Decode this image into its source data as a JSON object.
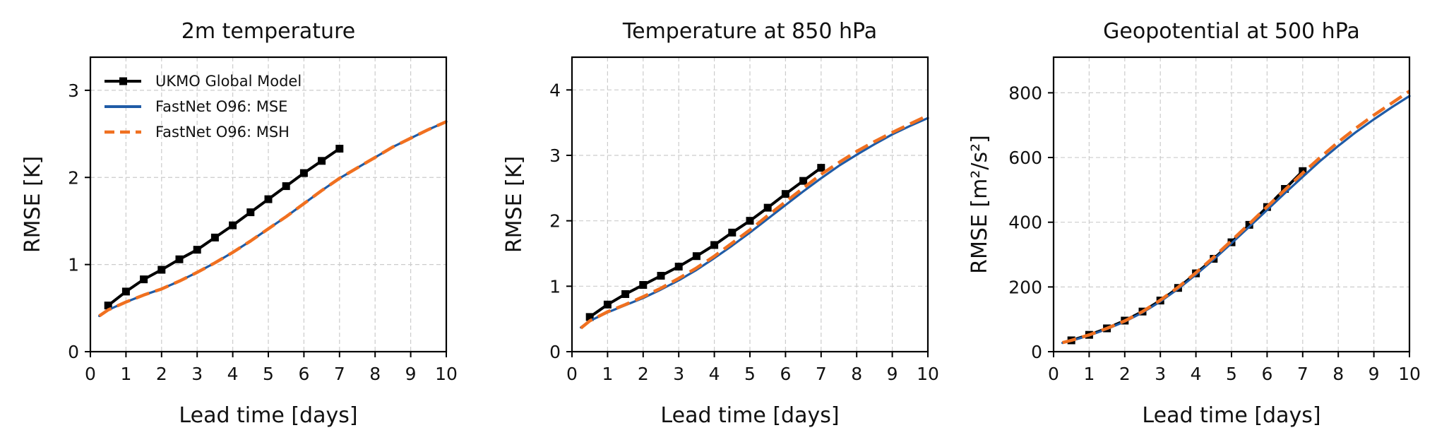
{
  "chart_data": [
    {
      "type": "line",
      "title": "2m temperature",
      "xlabel": "Lead time [days]",
      "ylabel": "RMSE [K]",
      "xlim": [
        0,
        10
      ],
      "ylim": [
        0,
        3.38
      ],
      "xticks": [
        0,
        1,
        2,
        3,
        4,
        5,
        6,
        7,
        8,
        9,
        10
      ],
      "yticks": [
        0,
        1,
        2,
        3
      ],
      "grid": true,
      "legend": "top-left",
      "series": [
        {
          "name": "UKMO Global Model",
          "color": "#000000",
          "style": "solid-square-markers",
          "x": [
            0.5,
            1,
            1.5,
            2,
            2.5,
            3,
            3.5,
            4,
            4.5,
            5,
            5.5,
            6,
            6.5,
            7
          ],
          "y": [
            0.53,
            0.69,
            0.83,
            0.94,
            1.06,
            1.17,
            1.31,
            1.45,
            1.6,
            1.75,
            1.9,
            2.05,
            2.19,
            2.33
          ]
        },
        {
          "name": "FastNet O96: MSE",
          "color": "#1f5ba6",
          "style": "solid",
          "x": [
            0.25,
            0.5,
            1,
            1.5,
            2,
            2.5,
            3,
            3.5,
            4,
            4.5,
            5,
            5.5,
            6,
            6.5,
            7,
            7.5,
            8,
            8.5,
            9,
            9.5,
            10
          ],
          "y": [
            0.41,
            0.48,
            0.57,
            0.65,
            0.72,
            0.81,
            0.91,
            1.02,
            1.14,
            1.27,
            1.41,
            1.55,
            1.7,
            1.85,
            1.99,
            2.11,
            2.23,
            2.35,
            2.45,
            2.55,
            2.64
          ]
        },
        {
          "name": "FastNet O96: MSH",
          "color": "#f07020",
          "style": "dashed",
          "x": [
            0.25,
            0.5,
            1,
            1.5,
            2,
            2.5,
            3,
            3.5,
            4,
            4.5,
            5,
            5.5,
            6,
            6.5,
            7,
            7.5,
            8,
            8.5,
            9,
            9.5,
            10
          ],
          "y": [
            0.41,
            0.48,
            0.57,
            0.65,
            0.72,
            0.81,
            0.91,
            1.02,
            1.14,
            1.27,
            1.41,
            1.55,
            1.7,
            1.85,
            1.99,
            2.11,
            2.23,
            2.35,
            2.45,
            2.55,
            2.64
          ]
        }
      ]
    },
    {
      "type": "line",
      "title": "Temperature at 850 hPa",
      "xlabel": "Lead time [days]",
      "ylabel": "RMSE [K]",
      "xlim": [
        0,
        10
      ],
      "ylim": [
        0,
        4.5
      ],
      "xticks": [
        0,
        1,
        2,
        3,
        4,
        5,
        6,
        7,
        8,
        9,
        10
      ],
      "yticks": [
        0,
        1,
        2,
        3,
        4
      ],
      "grid": true,
      "series": [
        {
          "name": "UKMO Global Model",
          "color": "#000000",
          "style": "solid-square-markers",
          "x": [
            0.5,
            1,
            1.5,
            2,
            2.5,
            3,
            3.5,
            4,
            4.5,
            5,
            5.5,
            6,
            6.5,
            7
          ],
          "y": [
            0.53,
            0.72,
            0.88,
            1.02,
            1.16,
            1.3,
            1.46,
            1.63,
            1.82,
            2.0,
            2.2,
            2.41,
            2.61,
            2.81
          ]
        },
        {
          "name": "FastNet O96: MSE",
          "color": "#1f5ba6",
          "style": "solid",
          "x": [
            0.25,
            0.5,
            1,
            1.5,
            2,
            2.5,
            3,
            3.5,
            4,
            4.5,
            5,
            5.5,
            6,
            6.5,
            7,
            7.5,
            8,
            8.5,
            9,
            9.5,
            10
          ],
          "y": [
            0.37,
            0.47,
            0.6,
            0.71,
            0.82,
            0.95,
            1.09,
            1.25,
            1.43,
            1.62,
            1.82,
            2.03,
            2.24,
            2.45,
            2.65,
            2.84,
            3.01,
            3.17,
            3.32,
            3.45,
            3.57
          ]
        },
        {
          "name": "FastNet O96: MSH",
          "color": "#f07020",
          "style": "dashed",
          "x": [
            0.25,
            0.5,
            1,
            1.5,
            2,
            2.5,
            3,
            3.5,
            4,
            4.5,
            5,
            5.5,
            6,
            6.5,
            7,
            7.5,
            8,
            8.5,
            9,
            9.5,
            10
          ],
          "y": [
            0.36,
            0.47,
            0.61,
            0.72,
            0.84,
            0.97,
            1.12,
            1.28,
            1.46,
            1.66,
            1.86,
            2.08,
            2.29,
            2.5,
            2.71,
            2.89,
            3.06,
            3.21,
            3.35,
            3.48,
            3.61
          ]
        }
      ]
    },
    {
      "type": "line",
      "title": "Geopotential at 500 hPa",
      "xlabel": "Lead time [days]",
      "ylabel": "RMSE [m²/s²]",
      "xlim": [
        0,
        10
      ],
      "ylim": [
        0,
        910
      ],
      "xticks": [
        0,
        1,
        2,
        3,
        4,
        5,
        6,
        7,
        8,
        9,
        10
      ],
      "yticks": [
        0,
        200,
        400,
        600,
        800
      ],
      "grid": true,
      "series": [
        {
          "name": "UKMO Global Model",
          "color": "#000000",
          "style": "solid-square-markers",
          "x": [
            0.5,
            1,
            1.5,
            2,
            2.5,
            3,
            3.5,
            4,
            4.5,
            5,
            5.5,
            6,
            6.5,
            7
          ],
          "y": [
            35,
            52,
            72,
            96,
            124,
            158,
            197,
            242,
            287,
            338,
            392,
            447,
            503,
            558
          ]
        },
        {
          "name": "FastNet O96: MSE",
          "color": "#1f5ba6",
          "style": "solid",
          "x": [
            0.25,
            0.5,
            1,
            1.5,
            2,
            2.5,
            3,
            3.5,
            4,
            4.5,
            5,
            5.5,
            6,
            6.5,
            7,
            7.5,
            8,
            8.5,
            9,
            9.5,
            10
          ],
          "y": [
            27,
            34,
            50,
            70,
            93,
            121,
            155,
            194,
            238,
            285,
            335,
            386,
            438,
            490,
            540,
            590,
            636,
            679,
            718,
            755,
            790
          ]
        },
        {
          "name": "FastNet O96: MSH",
          "color": "#f07020",
          "style": "dashed",
          "x": [
            0.25,
            0.5,
            1,
            1.5,
            2,
            2.5,
            3,
            3.5,
            4,
            4.5,
            5,
            5.5,
            6,
            6.5,
            7,
            7.5,
            8,
            8.5,
            9,
            9.5,
            10
          ],
          "y": [
            28,
            35,
            52,
            72,
            95,
            124,
            159,
            199,
            244,
            292,
            343,
            395,
            448,
            500,
            552,
            601,
            648,
            691,
            731,
            768,
            805
          ]
        }
      ]
    }
  ]
}
